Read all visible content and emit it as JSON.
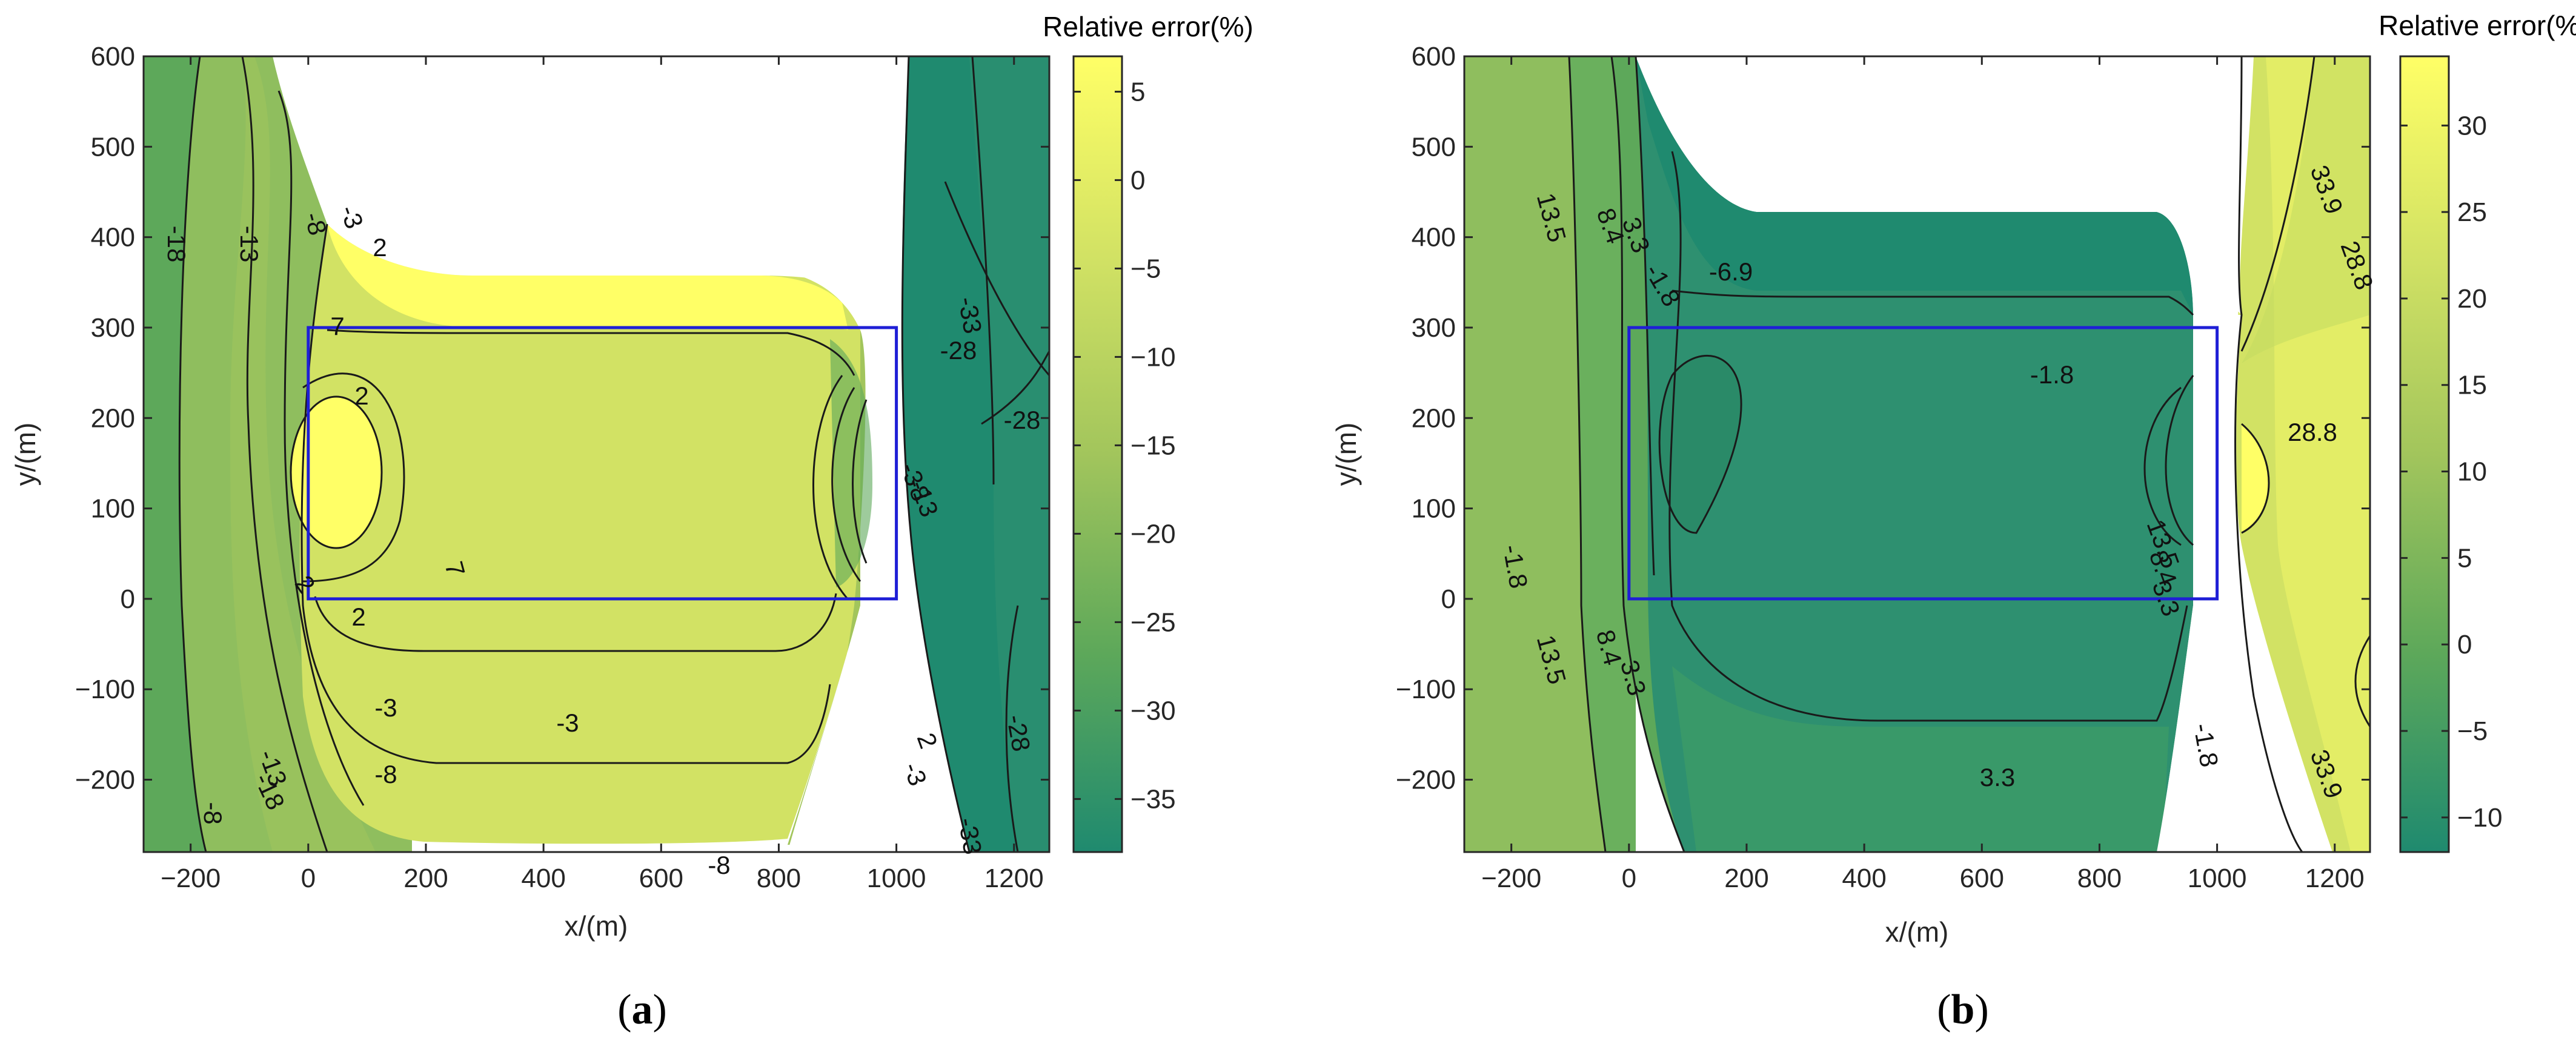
{
  "chart_data": [
    {
      "type": "contour",
      "panel_label": "a",
      "xlabel": "x/(m)",
      "ylabel": "y/(m)",
      "xlim": [
        -280,
        1260
      ],
      "ylim": [
        -280,
        600
      ],
      "xticks": [
        -200,
        0,
        200,
        400,
        600,
        800,
        1000,
        1200
      ],
      "yticks": [
        -200,
        -100,
        0,
        100,
        200,
        300,
        400,
        500,
        600
      ],
      "colorbar": {
        "title": "Relative error(%)",
        "range": [
          -38,
          7
        ],
        "ticks": [
          -35,
          -30,
          -25,
          -20,
          -15,
          -10,
          -5,
          0,
          5
        ],
        "colormap": [
          "#1f8a6f",
          "#5da85a",
          "#a2c55c",
          "#d2e264",
          "#ffff66"
        ]
      },
      "contour_labels": [
        "-18",
        "-13",
        "-8",
        "-3",
        "2",
        "7",
        "2",
        "2",
        "-3",
        "-8",
        "-3",
        "-8",
        "-13",
        "-18",
        "7",
        "2",
        "-3",
        "-8",
        "-13",
        "-33",
        "-28",
        "-28",
        "-28",
        "-33",
        "-3",
        "2",
        "-8"
      ],
      "rectangle": {
        "x": [
          0,
          1000
        ],
        "y": [
          0,
          300
        ],
        "color": "#1f1fd6"
      }
    },
    {
      "type": "contour",
      "panel_label": "b",
      "xlabel": "x/(m)",
      "ylabel": "y/(m)",
      "xlim": [
        -280,
        1260
      ],
      "ylim": [
        -280,
        600
      ],
      "xticks": [
        -200,
        0,
        200,
        400,
        600,
        800,
        1000,
        1200
      ],
      "yticks": [
        -200,
        -100,
        0,
        100,
        200,
        300,
        400,
        500,
        600
      ],
      "colorbar": {
        "title": "Relative error(%)",
        "range": [
          -12,
          34
        ],
        "ticks": [
          -10,
          -5,
          0,
          5,
          10,
          15,
          20,
          25,
          30
        ],
        "colormap": [
          "#1f8a6f",
          "#5da85a",
          "#a2c55c",
          "#d2e264",
          "#ffff66"
        ]
      },
      "contour_labels": [
        "13.5",
        "8.4",
        "3.3",
        "-1.8",
        "-6.9",
        "-1.8",
        "13.5",
        "8.4",
        "3.3",
        "-1.8",
        "3.3",
        "13.5",
        "8.4",
        "3.3",
        "-1.8",
        "33.9",
        "28.8",
        "28.8",
        "33.9"
      ],
      "rectangle": {
        "x": [
          0,
          1000
        ],
        "y": [
          0,
          300
        ],
        "color": "#1f1fd6"
      }
    }
  ]
}
